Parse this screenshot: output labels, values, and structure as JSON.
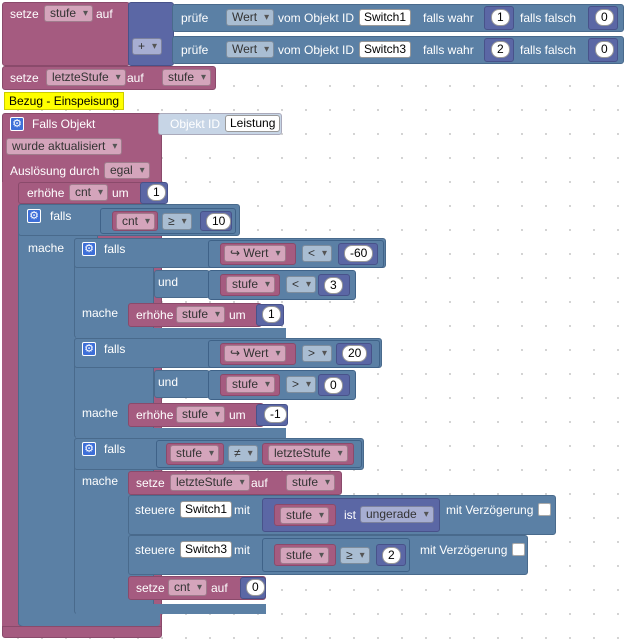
{
  "r1": {
    "setze": "setze",
    "var": "stufe",
    "auf": "auf",
    "plus": "+",
    "row1": {
      "pruefe": "prüfe",
      "attr": "Wert",
      "vom": "vom Objekt ID",
      "obj": "Switch1",
      "wahr": "falls wahr",
      "wv": "1",
      "falsch": "falls falsch",
      "fv": "0"
    },
    "row2": {
      "pruefe": "prüfe",
      "attr": "Wert",
      "vom": "vom Objekt ID",
      "obj": "Switch3",
      "wahr": "falls wahr",
      "wv": "2",
      "falsch": "falls falsch",
      "fv": "0"
    }
  },
  "r2": {
    "setze": "setze",
    "var": "letzteStufe",
    "auf": "auf",
    "val": "stufe"
  },
  "comment": "Bezug - Einspeisung",
  "trigger": {
    "title": "Falls Objekt",
    "objid_label": "Objekt ID",
    "objid": "Leistung",
    "event": "wurde aktualisiert",
    "ausl": "Auslösung durch",
    "ausl_val": "egal"
  },
  "inc1": {
    "op": "erhöhe",
    "var": "cnt",
    "um": "um",
    "val": "1"
  },
  "if1": {
    "falls": "falls",
    "var": "cnt",
    "cmp": "≥",
    "val": "10",
    "mache": "mache"
  },
  "ifA": {
    "falls": "falls",
    "wert": "↪ Wert",
    "cmp": "<",
    "val": "-60",
    "und": "und",
    "var": "stufe",
    "cmp2": "<",
    "val2": "3",
    "mache": "mache",
    "act": "erhöhe",
    "actvar": "stufe",
    "um": "um",
    "actval": "1"
  },
  "ifB": {
    "falls": "falls",
    "wert": "↪ Wert",
    "cmp": ">",
    "val": "20",
    "und": "und",
    "var": "stufe",
    "cmp2": ">",
    "val2": "0",
    "mache": "mache",
    "act": "erhöhe",
    "actvar": "stufe",
    "um": "um",
    "actval": "-1"
  },
  "ifC": {
    "falls": "falls",
    "var": "stufe",
    "cmp": "≠",
    "var2": "letzteStufe",
    "mache": "mache",
    "s1": {
      "setze": "setze",
      "var": "letzteStufe",
      "auf": "auf",
      "val": "stufe"
    },
    "s2": {
      "steuere": "steuere",
      "obj": "Switch1",
      "mit": "mit",
      "var": "stufe",
      "ist": "ist",
      "test": "ungerade",
      "delay": "mit Verzögerung"
    },
    "s3": {
      "steuere": "steuere",
      "obj": "Switch3",
      "mit": "mit",
      "var": "stufe",
      "cmp": "≥",
      "val": "2",
      "delay": "mit Verzögerung"
    },
    "s4": {
      "setze": "setze",
      "var": "cnt",
      "auf": "auf",
      "val": "0"
    }
  },
  "colors": {
    "variable": "#a55b80",
    "logic": "#5b80a5",
    "control": "#5b80a5",
    "math": "#5b67a5",
    "comment": "#ffff00"
  },
  "icons": {
    "gear": "gear-icon",
    "dropdown": "chevron-down-icon",
    "checkbox": "checkbox-icon"
  }
}
